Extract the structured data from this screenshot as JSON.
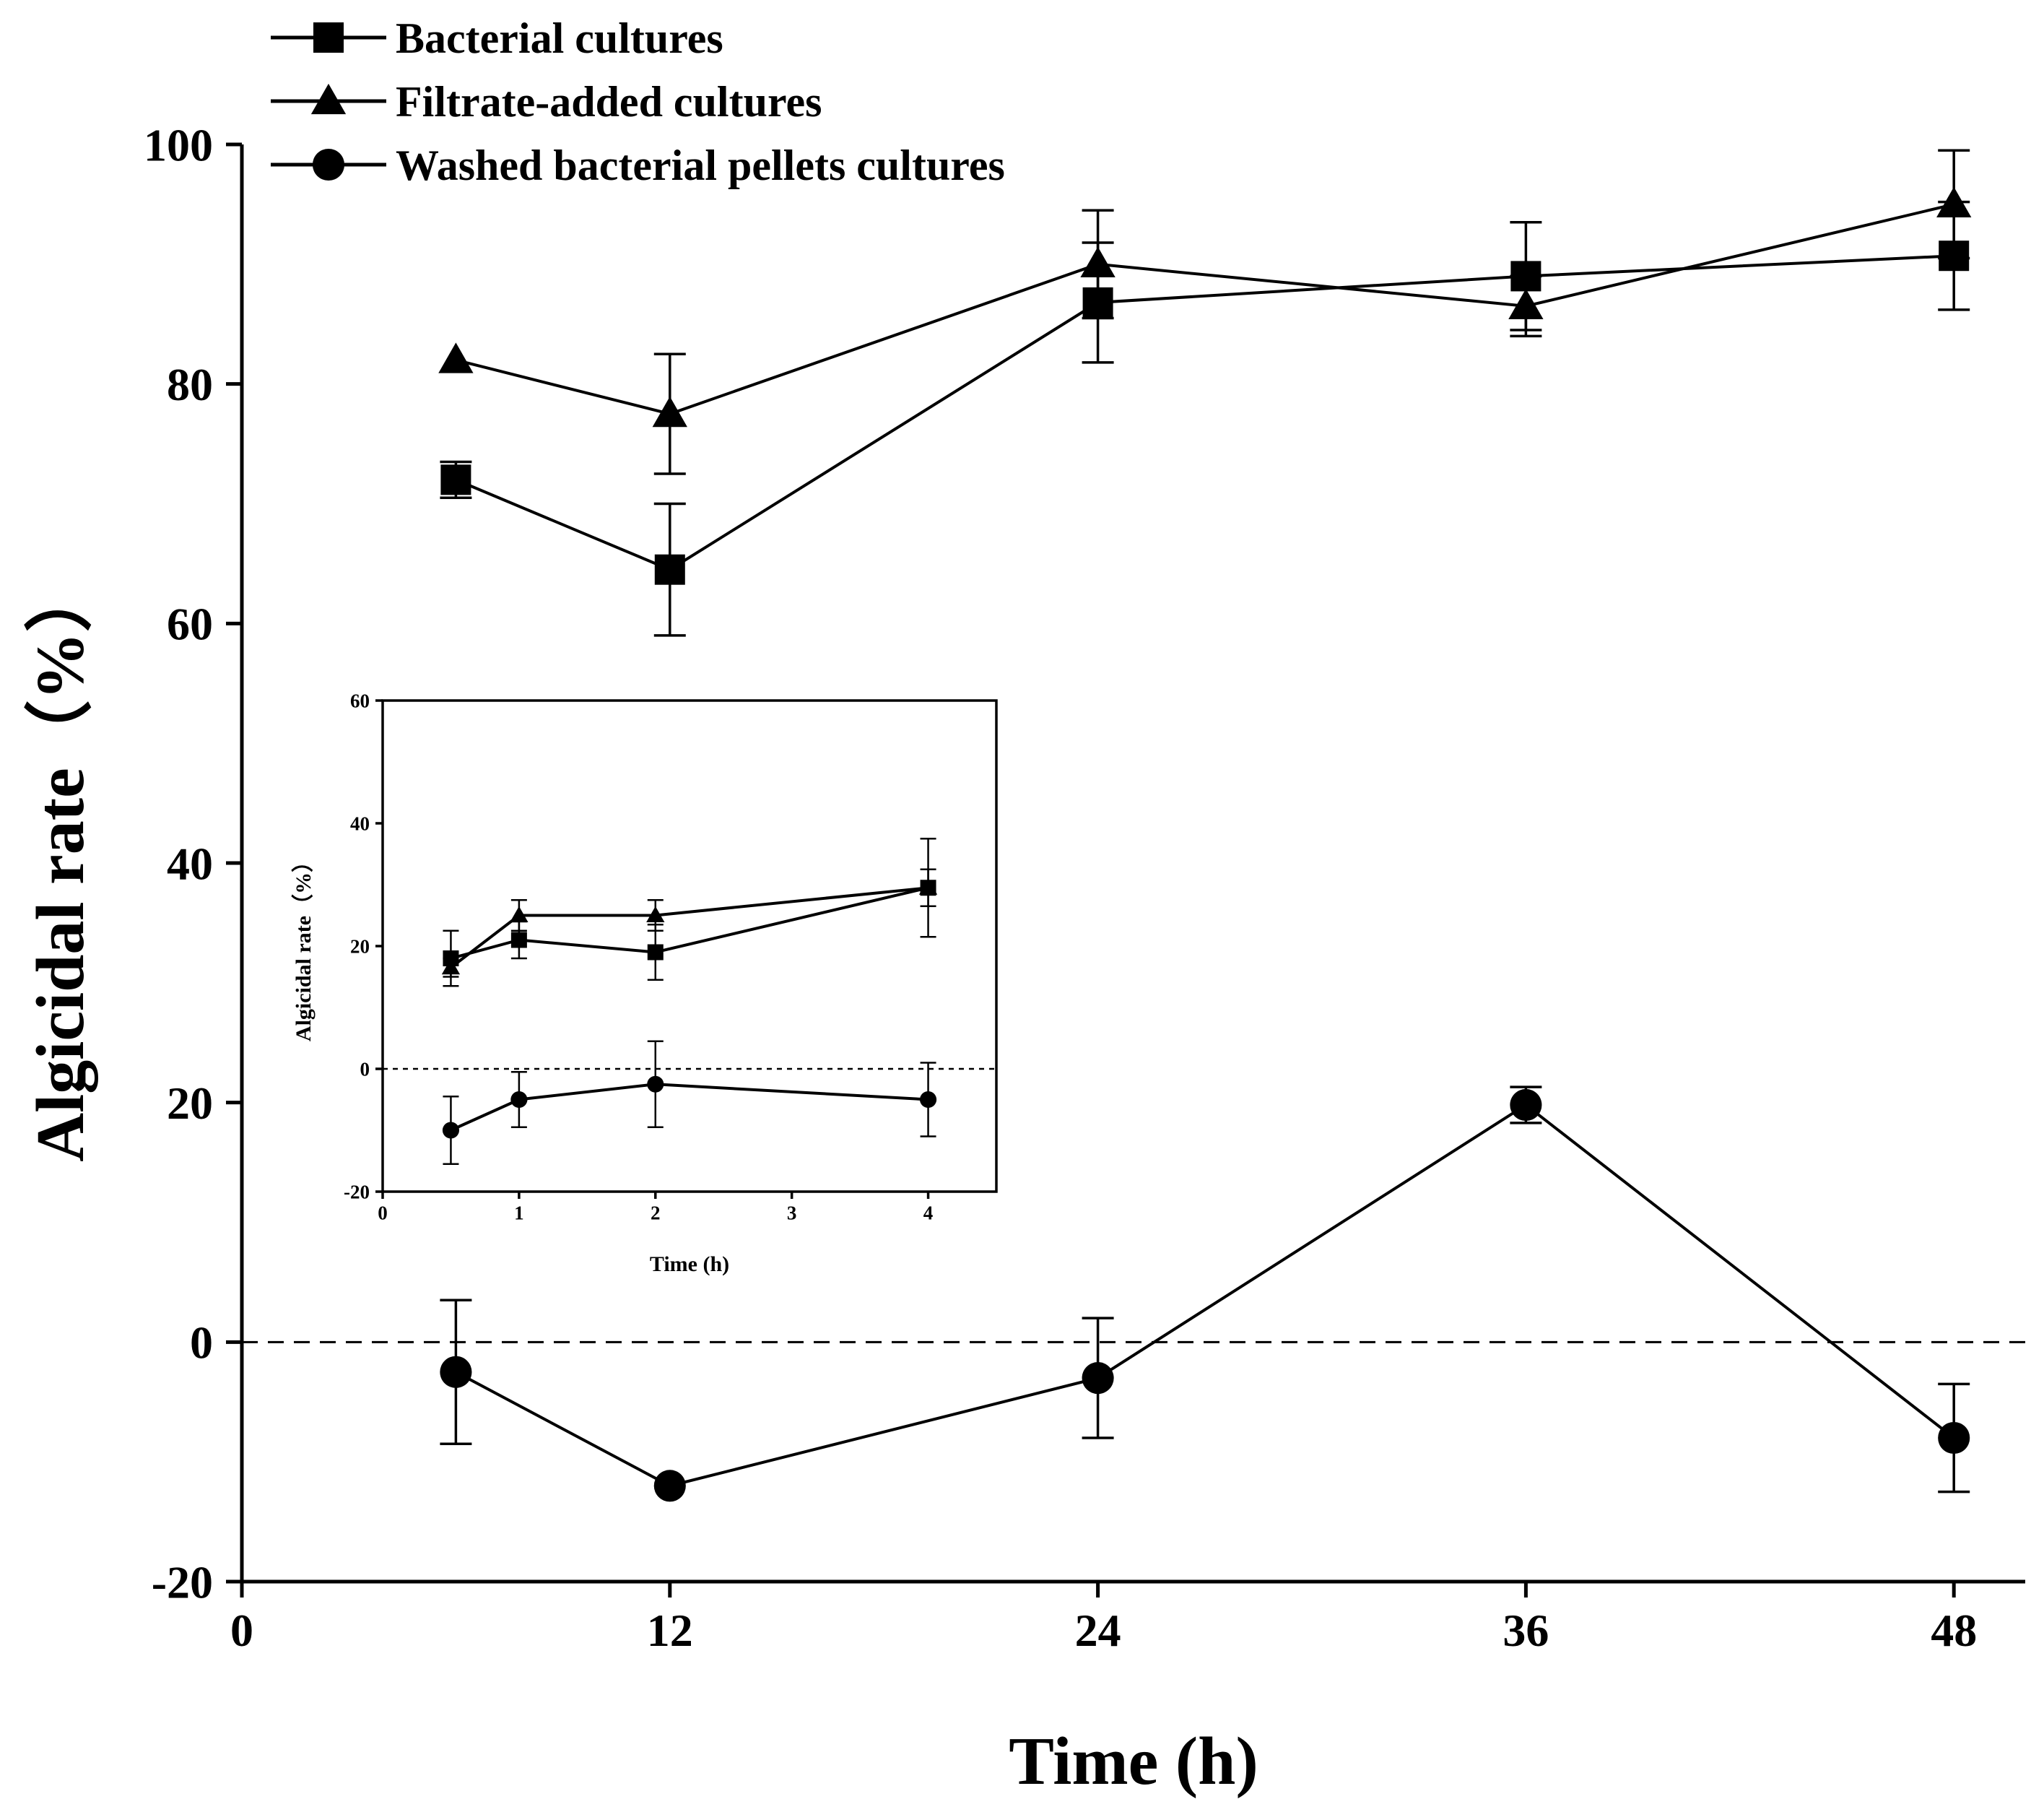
{
  "chart_data": [
    {
      "id": "main",
      "type": "line",
      "xlabel": "Time (h)",
      "ylabel": "Algicidal rate（%）",
      "xlim": [
        0,
        50
      ],
      "ylim": [
        -20,
        100
      ],
      "xticks": [
        0,
        12,
        24,
        36,
        48
      ],
      "yticks": [
        -20,
        0,
        20,
        40,
        60,
        80,
        100
      ],
      "legend_position": "top-left",
      "reference_line": {
        "y": 0,
        "style": "dashed"
      },
      "series": [
        {
          "name": "Bacterial cultures",
          "marker": "square",
          "x": [
            6,
            12,
            24,
            36,
            48
          ],
          "y": [
            72,
            64.5,
            86.8,
            89,
            90.7
          ],
          "err": [
            1.5,
            5.5,
            5,
            4.5,
            4.5
          ]
        },
        {
          "name": "Filtrate-added cultures",
          "marker": "triangle",
          "x": [
            6,
            12,
            24,
            36,
            48
          ],
          "y": [
            82,
            77.5,
            90,
            86.5,
            95
          ],
          "err": [
            0,
            5,
            4.5,
            2.5,
            4.5
          ]
        },
        {
          "name": "Washed bacterial pellets cultures",
          "marker": "circle",
          "x": [
            6,
            12,
            24,
            36,
            48
          ],
          "y": [
            -2.5,
            -12,
            -3,
            19.8,
            -8
          ],
          "err": [
            6,
            0,
            5,
            1.5,
            4.5
          ]
        }
      ]
    },
    {
      "id": "inset",
      "type": "line",
      "xlabel": "Time (h)",
      "ylabel": "Algicidal rate（%）",
      "xlim": [
        0,
        4.5
      ],
      "ylim": [
        -20,
        60
      ],
      "xticks": [
        0,
        1,
        2,
        3,
        4
      ],
      "yticks": [
        -20,
        0,
        20,
        40,
        60
      ],
      "reference_line": {
        "y": 0,
        "style": "dotted"
      },
      "series": [
        {
          "name": "Bacterial cultures",
          "marker": "square",
          "x": [
            0.5,
            1,
            2,
            4
          ],
          "y": [
            18,
            21,
            19,
            29.5
          ],
          "err": [
            4.5,
            3,
            4.5,
            8
          ]
        },
        {
          "name": "Filtrate-added cultures",
          "marker": "triangle",
          "x": [
            0.5,
            1,
            2,
            4
          ],
          "y": [
            16.5,
            25,
            25,
            29.5
          ],
          "err": [
            1.5,
            2.5,
            2.5,
            3
          ]
        },
        {
          "name": "Washed bacterial pellets cultures",
          "marker": "circle",
          "x": [
            0.5,
            1,
            2,
            4
          ],
          "y": [
            -10,
            -5,
            -2.5,
            -5
          ],
          "err": [
            5.5,
            4.5,
            7,
            6
          ]
        }
      ]
    }
  ]
}
